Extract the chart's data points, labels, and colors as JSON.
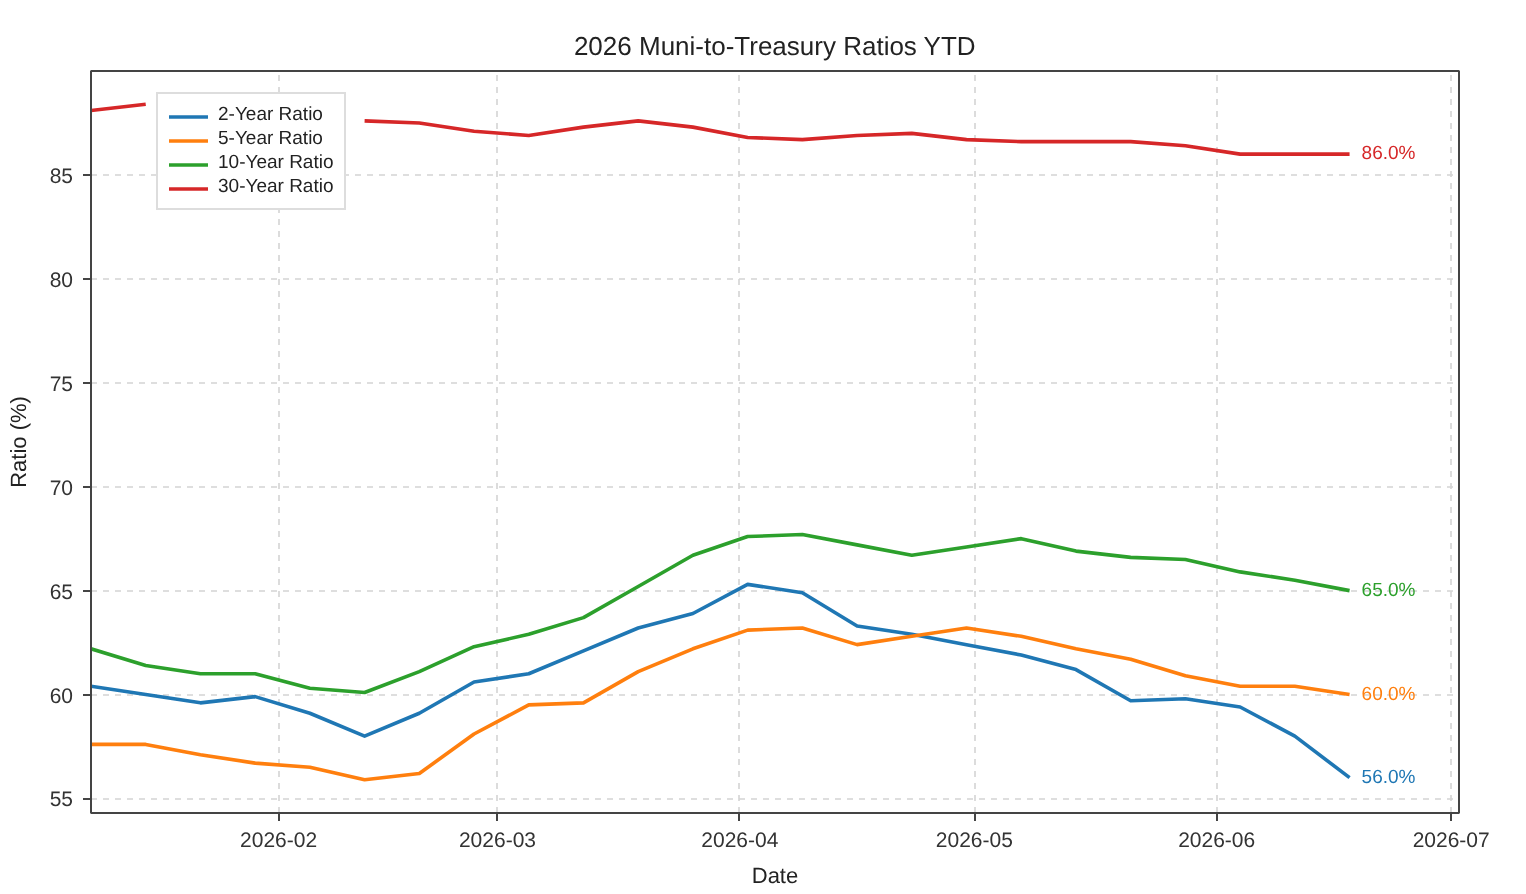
{
  "chart_data": {
    "type": "line",
    "title": "2026 Muni-to-Treasury Ratios YTD",
    "xlabel": "Date",
    "ylabel": "Ratio (%)",
    "x": [
      "2026-01-08",
      "2026-01-15",
      "2026-01-22",
      "2026-01-29",
      "2026-02-05",
      "2026-02-12",
      "2026-02-19",
      "2026-02-26",
      "2026-03-05",
      "2026-03-12",
      "2026-03-19",
      "2026-03-26",
      "2026-04-02",
      "2026-04-09",
      "2026-04-16",
      "2026-04-23",
      "2026-04-30",
      "2026-05-07",
      "2026-05-14",
      "2026-05-21",
      "2026-05-28",
      "2026-06-04",
      "2026-06-11",
      "2026-06-18"
    ],
    "series": [
      {
        "name": "2-Year Ratio",
        "color": "#1f77b4",
        "values": [
          60.4,
          60.0,
          59.6,
          59.9,
          59.1,
          58.0,
          59.1,
          60.6,
          61.0,
          62.1,
          63.2,
          63.9,
          65.3,
          64.9,
          63.3,
          62.9,
          62.4,
          61.9,
          61.2,
          59.7,
          59.8,
          59.4,
          58.0,
          56.0
        ],
        "value_labels": [
          null,
          null,
          null,
          null,
          null,
          null,
          null,
          null,
          null,
          null,
          null,
          null,
          null,
          null,
          null,
          null,
          null,
          null,
          null,
          null,
          null,
          null,
          null,
          "56.0%"
        ]
      },
      {
        "name": "5-Year Ratio",
        "color": "#ff7f0e",
        "values": [
          57.6,
          57.6,
          57.1,
          56.7,
          56.5,
          55.9,
          56.2,
          58.1,
          59.5,
          59.6,
          61.1,
          62.2,
          63.1,
          63.2,
          62.4,
          62.8,
          63.2,
          62.8,
          62.2,
          61.7,
          60.9,
          60.4,
          60.4,
          60.0
        ],
        "value_labels": [
          null,
          null,
          null,
          null,
          null,
          null,
          null,
          null,
          null,
          null,
          null,
          null,
          null,
          null,
          null,
          null,
          null,
          null,
          null,
          null,
          null,
          null,
          null,
          "60.0%"
        ]
      },
      {
        "name": "10-Year Ratio",
        "color": "#2ca02c",
        "values": [
          62.2,
          61.4,
          61.0,
          61.0,
          60.3,
          60.1,
          61.1,
          62.3,
          62.9,
          63.7,
          65.2,
          66.7,
          67.6,
          67.7,
          67.2,
          66.7,
          67.1,
          67.5,
          66.9,
          66.6,
          66.5,
          65.9,
          65.5,
          65.0
        ],
        "value_labels": [
          null,
          null,
          null,
          null,
          null,
          null,
          null,
          null,
          null,
          null,
          null,
          null,
          null,
          null,
          null,
          null,
          null,
          null,
          null,
          null,
          null,
          null,
          null,
          "65.0%"
        ]
      },
      {
        "name": "30-Year Ratio",
        "color": "#d62728",
        "values": [
          88.1,
          88.4,
          null,
          null,
          null,
          87.6,
          87.5,
          87.1,
          86.9,
          87.3,
          87.6,
          87.3,
          86.8,
          86.7,
          86.9,
          87.0,
          86.7,
          86.6,
          86.6,
          86.6,
          86.4,
          86.0,
          86.0,
          86.0
        ],
        "value_labels": [
          null,
          null,
          null,
          null,
          null,
          null,
          null,
          null,
          null,
          null,
          null,
          null,
          null,
          null,
          null,
          null,
          null,
          null,
          null,
          null,
          null,
          null,
          null,
          "86.0%"
        ]
      }
    ],
    "xlim": [
      "2026-01-08",
      "2026-07-02"
    ],
    "xticks": [
      "2026-02",
      "2026-03",
      "2026-04",
      "2026-05",
      "2026-06",
      "2026-07"
    ],
    "ylim": [
      54.3,
      90.0
    ],
    "yticks": [
      55,
      60,
      65,
      70,
      75,
      80,
      85
    ],
    "grid": true,
    "legend": "top left"
  }
}
